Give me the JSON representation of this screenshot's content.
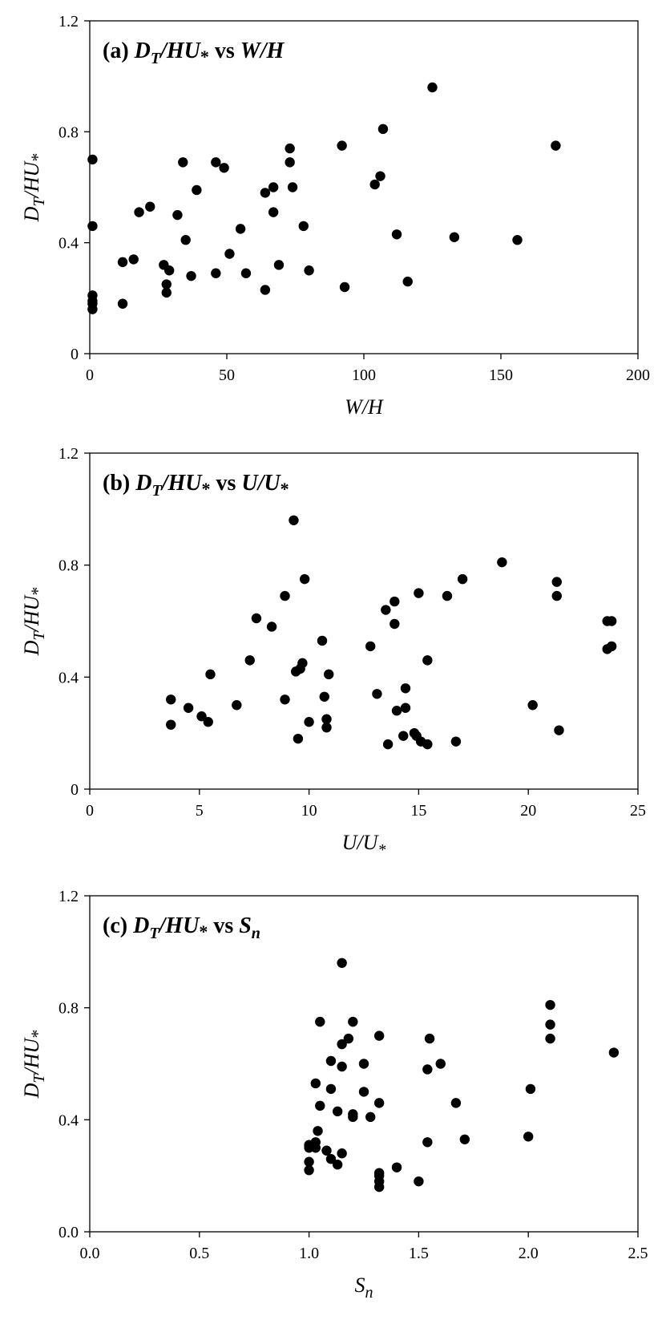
{
  "chart_data": [
    {
      "type": "scatter",
      "panel_label": "(a)",
      "title_parts": {
        "y_main": "D",
        "y_sub": "T",
        "y_rest": "/HU",
        "star": "*",
        "vs": "vs",
        "x_main": "W/H",
        "x_sub": ""
      },
      "xlabel": {
        "main": "W/H",
        "sub": ""
      },
      "ylabel": {
        "main": "D",
        "sub": "T",
        "rest": "/HU",
        "star": "*"
      },
      "xlim": [
        0,
        200
      ],
      "ylim": [
        0,
        1.2
      ],
      "xticks": [
        "0",
        "50",
        "100",
        "150",
        "200"
      ],
      "yticks": [
        "0",
        "0.4",
        "0.8",
        "1.2"
      ],
      "grid": false,
      "points": [
        [
          1,
          0.7
        ],
        [
          1,
          0.46
        ],
        [
          1,
          0.21
        ],
        [
          1,
          0.19
        ],
        [
          1,
          0.18
        ],
        [
          1,
          0.16
        ],
        [
          12,
          0.33
        ],
        [
          12,
          0.18
        ],
        [
          16,
          0.34
        ],
        [
          18,
          0.51
        ],
        [
          22,
          0.53
        ],
        [
          27,
          0.32
        ],
        [
          28,
          0.25
        ],
        [
          28,
          0.22
        ],
        [
          29,
          0.3
        ],
        [
          32,
          0.5
        ],
        [
          34,
          0.69
        ],
        [
          35,
          0.41
        ],
        [
          37,
          0.28
        ],
        [
          39,
          0.59
        ],
        [
          46,
          0.69
        ],
        [
          46,
          0.29
        ],
        [
          49,
          0.67
        ],
        [
          51,
          0.36
        ],
        [
          55,
          0.45
        ],
        [
          57,
          0.29
        ],
        [
          64,
          0.58
        ],
        [
          64,
          0.23
        ],
        [
          67,
          0.6
        ],
        [
          67,
          0.51
        ],
        [
          69,
          0.32
        ],
        [
          73,
          0.74
        ],
        [
          73,
          0.69
        ],
        [
          74,
          0.6
        ],
        [
          78,
          0.46
        ],
        [
          80,
          0.3
        ],
        [
          92,
          0.75
        ],
        [
          93,
          0.24
        ],
        [
          104,
          0.61
        ],
        [
          106,
          0.64
        ],
        [
          107,
          0.81
        ],
        [
          112,
          0.43
        ],
        [
          116,
          0.26
        ],
        [
          125,
          0.96
        ],
        [
          133,
          0.42
        ],
        [
          156,
          0.41
        ],
        [
          170,
          0.75
        ]
      ]
    },
    {
      "type": "scatter",
      "panel_label": "(b)",
      "title_parts": {
        "y_main": "D",
        "y_sub": "T",
        "y_rest": "/HU",
        "star": "*",
        "vs": "vs",
        "x_main": "U/U",
        "x_sub": "*"
      },
      "xlabel": {
        "main": "U/U",
        "sub": "*"
      },
      "ylabel": {
        "main": "D",
        "sub": "T",
        "rest": "/HU",
        "star": "*"
      },
      "xlim": [
        0,
        25
      ],
      "ylim": [
        0,
        1.2
      ],
      "xticks": [
        "0",
        "5",
        "10",
        "15",
        "20",
        "25"
      ],
      "yticks": [
        "0",
        "0.4",
        "0.8",
        "1.2"
      ],
      "grid": false,
      "points": [
        [
          3.7,
          0.32
        ],
        [
          3.7,
          0.23
        ],
        [
          4.5,
          0.29
        ],
        [
          5.1,
          0.26
        ],
        [
          5.4,
          0.24
        ],
        [
          5.5,
          0.41
        ],
        [
          6.7,
          0.3
        ],
        [
          7.3,
          0.46
        ],
        [
          7.6,
          0.61
        ],
        [
          8.3,
          0.58
        ],
        [
          8.9,
          0.69
        ],
        [
          8.9,
          0.32
        ],
        [
          9.3,
          0.96
        ],
        [
          9.4,
          0.42
        ],
        [
          9.5,
          0.18
        ],
        [
          9.6,
          0.43
        ],
        [
          9.7,
          0.45
        ],
        [
          9.8,
          0.75
        ],
        [
          10.0,
          0.24
        ],
        [
          10.6,
          0.53
        ],
        [
          10.7,
          0.33
        ],
        [
          10.8,
          0.25
        ],
        [
          10.8,
          0.22
        ],
        [
          10.9,
          0.41
        ],
        [
          12.8,
          0.51
        ],
        [
          13.1,
          0.34
        ],
        [
          13.5,
          0.64
        ],
        [
          13.6,
          0.16
        ],
        [
          13.9,
          0.67
        ],
        [
          13.9,
          0.59
        ],
        [
          14.0,
          0.28
        ],
        [
          14.3,
          0.19
        ],
        [
          14.4,
          0.36
        ],
        [
          14.4,
          0.29
        ],
        [
          14.8,
          0.2
        ],
        [
          14.9,
          0.19
        ],
        [
          15.0,
          0.7
        ],
        [
          15.1,
          0.17
        ],
        [
          15.4,
          0.46
        ],
        [
          15.4,
          0.16
        ],
        [
          16.3,
          0.69
        ],
        [
          16.7,
          0.17
        ],
        [
          17.0,
          0.75
        ],
        [
          18.8,
          0.81
        ],
        [
          20.2,
          0.3
        ],
        [
          21.3,
          0.74
        ],
        [
          21.3,
          0.69
        ],
        [
          21.4,
          0.21
        ],
        [
          23.6,
          0.6
        ],
        [
          23.6,
          0.5
        ],
        [
          23.8,
          0.6
        ],
        [
          23.8,
          0.51
        ]
      ]
    },
    {
      "type": "scatter",
      "panel_label": "(c)",
      "title_parts": {
        "y_main": "D",
        "y_sub": "T",
        "y_rest": "/HU",
        "star": "*",
        "vs": "vs",
        "x_main": "S",
        "x_sub": "n"
      },
      "xlabel": {
        "main": "S",
        "sub": "n"
      },
      "ylabel": {
        "main": "D",
        "sub": "T",
        "rest": "/HU",
        "star": "*"
      },
      "xlim": [
        0,
        2.5
      ],
      "ylim": [
        0,
        1.2
      ],
      "xticks": [
        "0.0",
        "0.5",
        "1.0",
        "1.5",
        "2.0",
        "2.5"
      ],
      "yticks": [
        "0.0",
        "0.4",
        "0.8",
        "1.2"
      ],
      "grid": false,
      "points": [
        [
          1.0,
          0.31
        ],
        [
          1.0,
          0.3
        ],
        [
          1.0,
          0.25
        ],
        [
          1.0,
          0.22
        ],
        [
          1.03,
          0.53
        ],
        [
          1.03,
          0.32
        ],
        [
          1.03,
          0.3
        ],
        [
          1.04,
          0.36
        ],
        [
          1.05,
          0.75
        ],
        [
          1.05,
          0.45
        ],
        [
          1.08,
          0.29
        ],
        [
          1.1,
          0.61
        ],
        [
          1.1,
          0.51
        ],
        [
          1.1,
          0.26
        ],
        [
          1.13,
          0.43
        ],
        [
          1.13,
          0.24
        ],
        [
          1.15,
          0.96
        ],
        [
          1.15,
          0.67
        ],
        [
          1.15,
          0.59
        ],
        [
          1.15,
          0.28
        ],
        [
          1.18,
          0.69
        ],
        [
          1.2,
          0.75
        ],
        [
          1.2,
          0.42
        ],
        [
          1.2,
          0.41
        ],
        [
          1.25,
          0.6
        ],
        [
          1.25,
          0.5
        ],
        [
          1.28,
          0.41
        ],
        [
          1.32,
          0.7
        ],
        [
          1.32,
          0.46
        ],
        [
          1.32,
          0.21
        ],
        [
          1.32,
          0.2
        ],
        [
          1.32,
          0.18
        ],
        [
          1.32,
          0.16
        ],
        [
          1.4,
          0.23
        ],
        [
          1.5,
          0.18
        ],
        [
          1.54,
          0.58
        ],
        [
          1.54,
          0.32
        ],
        [
          1.55,
          0.69
        ],
        [
          1.6,
          0.6
        ],
        [
          1.67,
          0.46
        ],
        [
          1.71,
          0.33
        ],
        [
          2.0,
          0.34
        ],
        [
          2.01,
          0.51
        ],
        [
          2.1,
          0.81
        ],
        [
          2.1,
          0.74
        ],
        [
          2.1,
          0.69
        ],
        [
          2.39,
          0.64
        ]
      ]
    }
  ]
}
